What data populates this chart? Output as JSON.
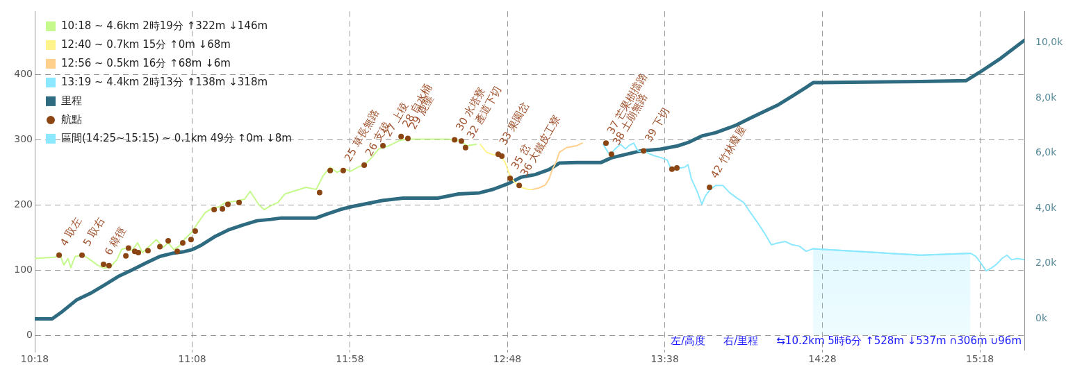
{
  "chart_data": {
    "type": "line",
    "xlim": [
      10.3,
      15.535
    ],
    "xticks": [
      {
        "value": 10.3,
        "label": "10:18"
      },
      {
        "value": 11.133,
        "label": "11:08"
      },
      {
        "value": 11.967,
        "label": "11:58"
      },
      {
        "value": 12.8,
        "label": "12:48"
      },
      {
        "value": 13.633,
        "label": "13:38"
      },
      {
        "value": 14.467,
        "label": "14:28"
      },
      {
        "value": 15.3,
        "label": "15:18"
      }
    ],
    "ylim": [
      -22,
      497
    ],
    "yticks": [
      0,
      100,
      200,
      300,
      400
    ],
    "y2lim": [
      -1120,
      11130
    ],
    "y2ticks": [
      {
        "value": 0,
        "label": "0k"
      },
      {
        "value": 2000,
        "label": "2,0k"
      },
      {
        "value": 4000,
        "label": "4,0k"
      },
      {
        "value": 6000,
        "label": "6,0k"
      },
      {
        "value": 8000,
        "label": "8,0k"
      },
      {
        "value": 10000,
        "label": "10,0k"
      }
    ],
    "grid": true,
    "legend": "top left",
    "series": [
      {
        "name": "10:18 ~ 4.6km 2時19分 ↑322m ↓146m",
        "color": "#c6f98c",
        "x": [
          10.3,
          10.41,
          10.429,
          10.454,
          10.476,
          10.491,
          10.513,
          10.557,
          10.594,
          10.631,
          10.668,
          10.704,
          10.734,
          10.76,
          10.785,
          10.815,
          10.844,
          10.87,
          10.907,
          10.943,
          10.98,
          11.006,
          11.035,
          11.065,
          11.09,
          11.127,
          11.164,
          11.201,
          11.238,
          11.274,
          11.311,
          11.366,
          11.41,
          11.44,
          11.484,
          11.513,
          11.55,
          11.587,
          11.624,
          11.734,
          11.789,
          11.826,
          11.863,
          11.899,
          11.936,
          11.973,
          12.01,
          12.046,
          12.083,
          12.12,
          12.175,
          12.23,
          12.267,
          12.322,
          12.396,
          12.488,
          12.543,
          12.587,
          12.635
        ],
        "values": [
          118,
          120,
          127,
          108,
          118,
          104,
          121,
          123,
          116,
          108,
          103,
          106,
          116,
          132,
          134,
          130,
          142,
          127,
          137,
          147,
          135,
          142,
          132,
          137,
          147,
          157,
          173,
          188,
          195,
          197,
          204,
          206,
          209,
          221,
          201,
          193,
          199,
          204,
          217,
          227,
          224,
          245,
          258,
          250,
          255,
          252,
          258,
          262,
          273,
          286,
          291,
          299,
          301,
          301,
          301,
          301,
          299,
          291,
          293
        ]
      },
      {
        "name": "12:40 ~ 0.7km 15分 ↑0m ↓68m",
        "color": "#fff48c",
        "x": [
          12.657,
          12.69,
          12.726,
          12.763,
          12.789,
          12.811,
          12.837,
          12.874,
          12.91,
          12.929
        ],
        "values": [
          293,
          281,
          277,
          276,
          265,
          247,
          235,
          227,
          224,
          224
        ]
      },
      {
        "name": "12:56 ~ 0.5km 16分 ↑68m ↓6m",
        "color": "#ffd08c",
        "x": [
          12.933,
          12.966,
          13.002,
          13.021,
          13.039,
          13.057,
          13.076,
          13.113,
          13.168,
          13.197
        ],
        "values": [
          224,
          226,
          231,
          240,
          255,
          265,
          281,
          288,
          291,
          295
        ]
      },
      {
        "name": "13:19 ~ 4.4km 2時13分 ↑138m ↓318m",
        "color": "#8ce8ff",
        "x": [
          13.307,
          13.322,
          13.344,
          13.37,
          13.399,
          13.425,
          13.443,
          13.469,
          13.491,
          13.535,
          13.572,
          13.609,
          13.646,
          13.668,
          13.701,
          13.738,
          13.756,
          13.774,
          13.804,
          13.829,
          13.848,
          13.874,
          13.903,
          13.94,
          13.976,
          14.013,
          14.05,
          14.087,
          14.124,
          14.16,
          14.197,
          14.234,
          14.271,
          14.307,
          14.344,
          14.381,
          14.417,
          14.988,
          15.25,
          15.279,
          15.3,
          15.333,
          15.359,
          15.388,
          15.417,
          15.443,
          15.468,
          15.497,
          15.535
        ],
        "values": [
          293,
          286,
          276,
          286,
          293,
          286,
          291,
          295,
          283,
          281,
          276,
          273,
          269,
          254,
          256,
          258,
          262,
          240,
          221,
          201,
          214,
          224,
          230,
          230,
          219,
          211,
          204,
          188,
          173,
          157,
          139,
          142,
          144,
          139,
          137,
          129,
          133,
          123,
          126,
          121,
          113,
          99,
          103,
          109,
          118,
          123,
          116,
          118,
          116
        ]
      },
      {
        "name": "里程",
        "color": "#2e6b80",
        "axis": "y2",
        "x": [
          10.3,
          10.392,
          10.447,
          10.521,
          10.594,
          10.668,
          10.741,
          10.815,
          10.888,
          10.962,
          11.035,
          11.09,
          11.131,
          11.182,
          11.256,
          11.329,
          11.403,
          11.476,
          11.55,
          11.605,
          11.789,
          11.844,
          11.918,
          11.991,
          12.065,
          12.138,
          12.249,
          12.432,
          12.543,
          12.653,
          12.726,
          12.8,
          12.874,
          12.947,
          13.021,
          13.076,
          13.168,
          13.296,
          13.351,
          13.425,
          13.499,
          13.609,
          13.701,
          13.756,
          13.829,
          13.903,
          13.976,
          14.013,
          14.087,
          14.16,
          14.234,
          14.307,
          14.381,
          14.418,
          14.454,
          14.988,
          15.226,
          15.3,
          15.41,
          15.535
        ],
        "values": [
          0,
          0,
          270,
          680,
          920,
          1220,
          1530,
          1770,
          2020,
          2260,
          2380,
          2430,
          2500,
          2670,
          2990,
          3230,
          3400,
          3550,
          3600,
          3650,
          3650,
          3790,
          3960,
          4080,
          4180,
          4280,
          4370,
          4370,
          4520,
          4560,
          4690,
          4880,
          5130,
          5220,
          5400,
          5640,
          5660,
          5660,
          5830,
          5950,
          6070,
          6140,
          6260,
          6380,
          6620,
          6740,
          6920,
          7020,
          7270,
          7510,
          7750,
          8060,
          8380,
          8550,
          8550,
          8590,
          8620,
          8930,
          9430,
          10080
        ]
      },
      {
        "name": "航點",
        "color": "#8b4513",
        "type": "scatter",
        "marker": "circle",
        "x": [
          10.429,
          10.55,
          10.664,
          10.693,
          10.782,
          10.796,
          10.829,
          10.848,
          10.899,
          10.962,
          11.006,
          11.054,
          11.083,
          11.127,
          11.149,
          11.249,
          11.293,
          11.322,
          11.381,
          11.807,
          11.863,
          11.932,
          12.043,
          12.142,
          12.238,
          12.274,
          12.521,
          12.557,
          12.579,
          12.752,
          12.771,
          12.815,
          12.863,
          13.322,
          13.351,
          13.521,
          13.671,
          13.697,
          13.87
        ],
        "values": [
          123,
          123,
          109,
          107,
          122,
          134,
          129,
          127,
          130,
          136,
          145,
          129,
          142,
          147,
          160,
          193,
          194,
          201,
          204,
          219,
          253,
          253,
          261,
          291,
          305,
          302,
          300,
          298,
          288,
          278,
          275,
          241,
          230,
          295,
          278,
          283,
          255,
          257,
          227
        ]
      },
      {
        "name": "區間(14:25~15:15) ~ 0.1km 49分 ↑0m ↓8m",
        "color": "#8ce8ff",
        "type": "area",
        "x": [
          14.417,
          14.988,
          15.25
        ],
        "values": [
          133,
          123,
          126
        ]
      }
    ],
    "annotations": [
      {
        "text": "4 取左",
        "x": 10.429,
        "y": 123
      },
      {
        "text": "5 取右",
        "x": 10.55,
        "y": 123
      },
      {
        "text": "6 樟徑",
        "x": 10.664,
        "y": 109
      },
      {
        "text": "25 草長無路",
        "x": 11.932,
        "y": 253
      },
      {
        "text": "26 支稜",
        "x": 12.043,
        "y": 261
      },
      {
        "text": "27 上稜",
        "x": 12.142,
        "y": 291
      },
      {
        "text": "28 自水桶",
        "x": 12.238,
        "y": 305
      },
      {
        "text": "29 鹿壟",
        "x": 12.274,
        "y": 302
      },
      {
        "text": "30 水塔寮",
        "x": 12.521,
        "y": 300
      },
      {
        "text": "32 產道下切",
        "x": 12.579,
        "y": 288
      },
      {
        "text": "33 果園岔",
        "x": 12.752,
        "y": 278
      },
      {
        "text": "35 岔",
        "x": 12.815,
        "y": 241
      },
      {
        "text": "36 大鐵皮工寮",
        "x": 12.863,
        "y": 230
      },
      {
        "text": "37 芒果樹擋路",
        "x": 13.322,
        "y": 295
      },
      {
        "text": "38 土崩無路",
        "x": 13.351,
        "y": 278
      },
      {
        "text": "39 下切",
        "x": 13.521,
        "y": 283
      },
      {
        "text": "42 竹林廢屋",
        "x": 13.87,
        "y": 227
      },
      "左/高度",
      "右/里程",
      "⇆10.2km 5時6分 ↑528m ↓537m ∩306m ∪96m"
    ]
  }
}
